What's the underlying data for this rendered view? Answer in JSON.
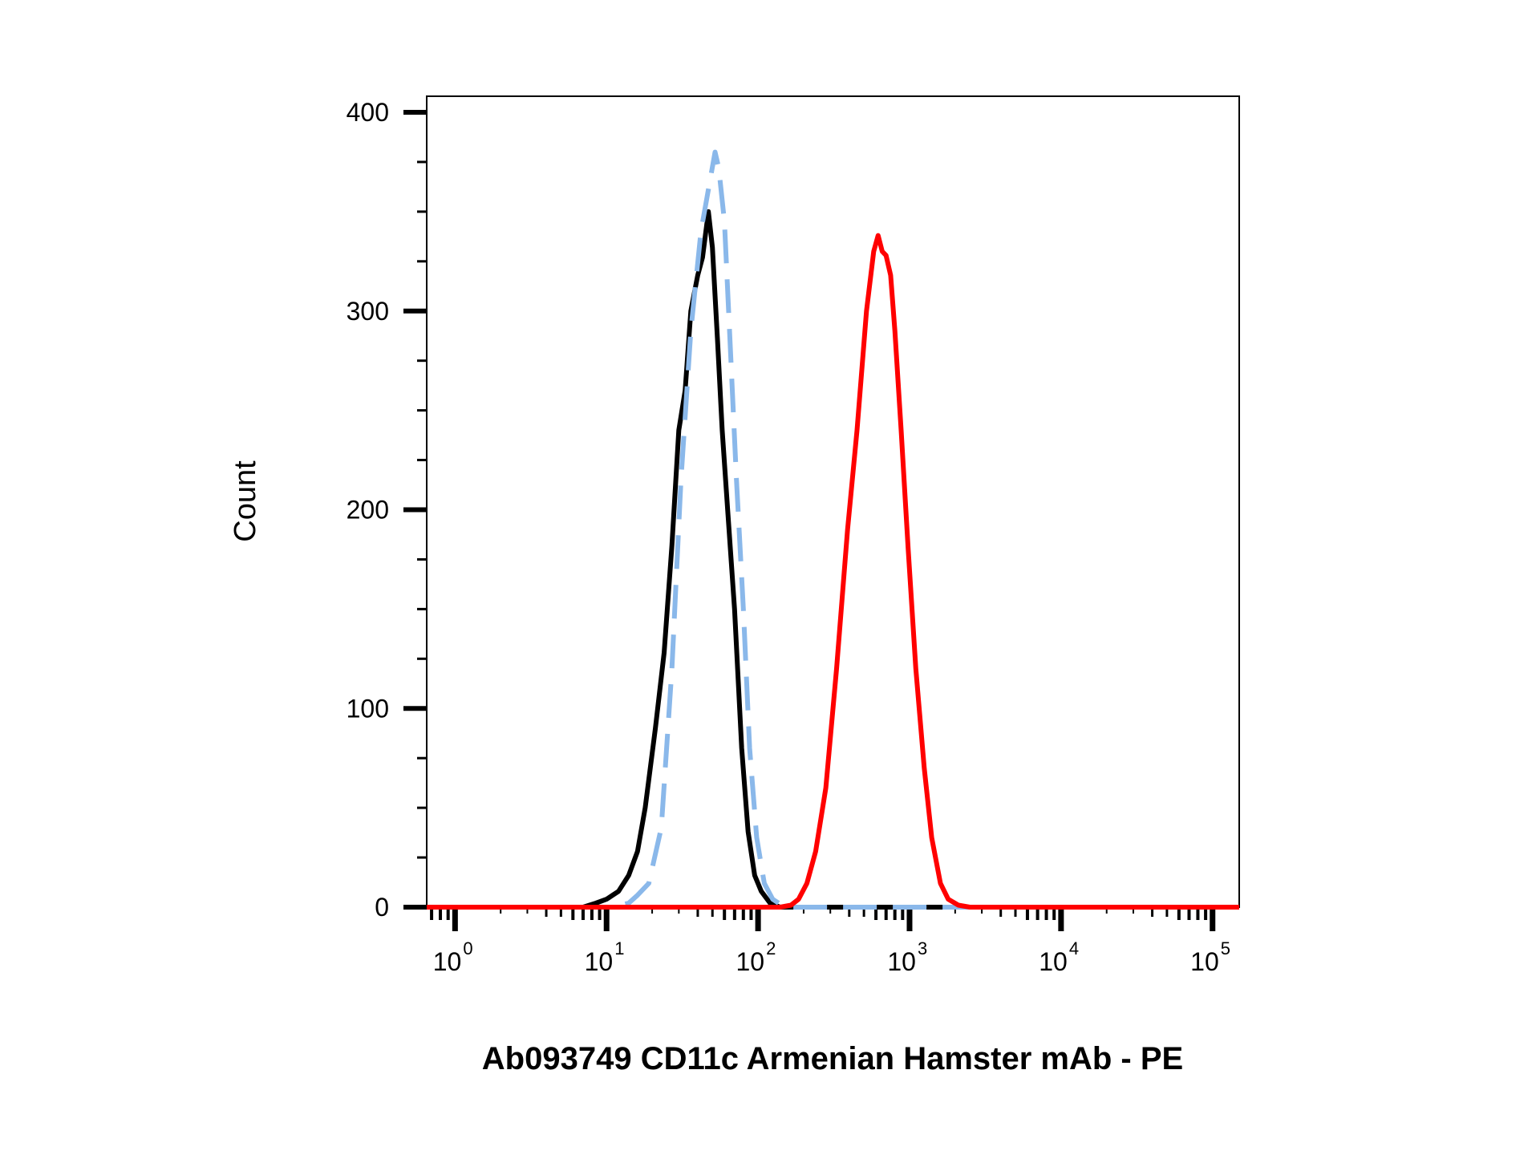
{
  "chart_data": {
    "type": "line",
    "title": "",
    "xlabel": "Ab093749 CD11c Armenian Hamster mAb - PE",
    "ylabel": "Count",
    "x_scale": "log",
    "xlim": [
      0.65,
      150000
    ],
    "ylim": [
      0,
      400
    ],
    "y_ticks": [
      0,
      100,
      200,
      300,
      400
    ],
    "x_ticks": [
      {
        "value": 1,
        "base": "10",
        "exp": "0"
      },
      {
        "value": 10,
        "base": "10",
        "exp": "1"
      },
      {
        "value": 100,
        "base": "10",
        "exp": "2"
      },
      {
        "value": 1000,
        "base": "10",
        "exp": "3"
      },
      {
        "value": 10000,
        "base": "10",
        "exp": "4"
      },
      {
        "value": 100000,
        "base": "10",
        "exp": "5"
      }
    ],
    "grid": false,
    "legend": "none",
    "series": [
      {
        "color": "#000000",
        "style": "solid",
        "points": [
          [
            0.65,
            0
          ],
          [
            7,
            0
          ],
          [
            8.5,
            2
          ],
          [
            10,
            4
          ],
          [
            12,
            8
          ],
          [
            14,
            16
          ],
          [
            16,
            28
          ],
          [
            18,
            50
          ],
          [
            21,
            90
          ],
          [
            24,
            128
          ],
          [
            27,
            182
          ],
          [
            30,
            240
          ],
          [
            33,
            260
          ],
          [
            36,
            300
          ],
          [
            40,
            318
          ],
          [
            43,
            327
          ],
          [
            47,
            350
          ],
          [
            50,
            332
          ],
          [
            54,
            285
          ],
          [
            58,
            240
          ],
          [
            63,
            200
          ],
          [
            70,
            150
          ],
          [
            78,
            80
          ],
          [
            86,
            38
          ],
          [
            95,
            16
          ],
          [
            105,
            8
          ],
          [
            120,
            2
          ],
          [
            140,
            0
          ],
          [
            150000,
            0
          ]
        ]
      },
      {
        "color": "#8ab8ea",
        "style": "dashed",
        "points": [
          [
            0.65,
            0
          ],
          [
            11,
            0
          ],
          [
            14,
            2
          ],
          [
            16,
            6
          ],
          [
            19,
            12
          ],
          [
            23,
            40
          ],
          [
            27,
            120
          ],
          [
            31,
            215
          ],
          [
            36,
            290
          ],
          [
            42,
            340
          ],
          [
            48,
            365
          ],
          [
            52,
            380
          ],
          [
            55,
            372
          ],
          [
            60,
            345
          ],
          [
            65,
            288
          ],
          [
            72,
            215
          ],
          [
            80,
            150
          ],
          [
            88,
            80
          ],
          [
            98,
            35
          ],
          [
            110,
            12
          ],
          [
            125,
            4
          ],
          [
            150,
            0
          ],
          [
            150000,
            0
          ]
        ]
      },
      {
        "color": "#ff0000",
        "style": "solid",
        "points": [
          [
            0.65,
            0
          ],
          [
            140,
            0
          ],
          [
            165,
            1
          ],
          [
            185,
            4
          ],
          [
            210,
            12
          ],
          [
            240,
            28
          ],
          [
            280,
            60
          ],
          [
            330,
            120
          ],
          [
            390,
            190
          ],
          [
            450,
            240
          ],
          [
            520,
            300
          ],
          [
            580,
            330
          ],
          [
            620,
            338
          ],
          [
            660,
            330
          ],
          [
            700,
            328
          ],
          [
            750,
            318
          ],
          [
            800,
            290
          ],
          [
            880,
            240
          ],
          [
            980,
            180
          ],
          [
            1100,
            120
          ],
          [
            1250,
            70
          ],
          [
            1400,
            35
          ],
          [
            1600,
            12
          ],
          [
            1800,
            4
          ],
          [
            2100,
            1
          ],
          [
            2500,
            0
          ],
          [
            150000,
            0
          ]
        ]
      }
    ]
  }
}
